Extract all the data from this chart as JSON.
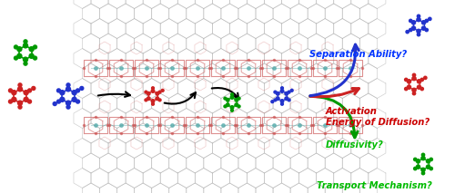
{
  "bg_color": "#ffffff",
  "mof_gray": "#aaaaaa",
  "mof_red": "#cc5555",
  "mof_teal": "#55aaaa",
  "green": "#009900",
  "red": "#cc2222",
  "blue": "#2233cc",
  "text_green": "#00bb00",
  "text_red": "#cc0000",
  "text_blue": "#0033ff",
  "labels": {
    "transport": "Transport Mechanism?",
    "diffusivity": "Diffusivity?",
    "activation": "Activation\nEnergy of Diffusion?",
    "separation": "Separation Ability?"
  }
}
